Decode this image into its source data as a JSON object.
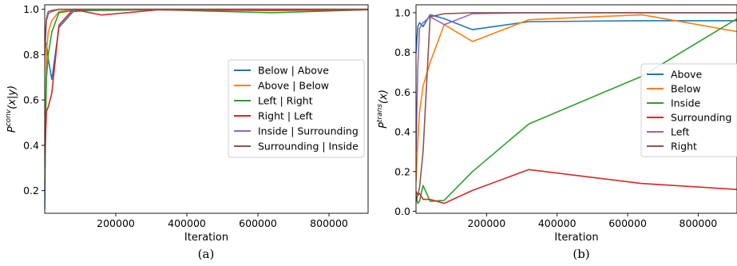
{
  "chart_data": [
    {
      "type": "line",
      "panel": "a",
      "caption": "(a)",
      "xlabel": "Iteration",
      "ylabel_base": "P",
      "ylabel_sup": "conv",
      "ylabel_arg": "(x|y)",
      "xlim": [
        0,
        910000
      ],
      "ylim": [
        0.1,
        1.02
      ],
      "xticks": [
        200000,
        400000,
        600000,
        800000
      ],
      "yticks": [
        0.2,
        0.4,
        0.6,
        0.8,
        1.0
      ],
      "ytick_labels": [
        "0.2",
        "0.4",
        "0.6",
        "0.8",
        "1.0"
      ],
      "grid": false,
      "legend_position": "center-right",
      "series": [
        {
          "name": "Below | Above",
          "color": "#1f77b4",
          "x": [
            0,
            5000,
            10000,
            20000,
            40000,
            80000,
            160000,
            320000,
            640000,
            910000
          ],
          "y": [
            0.12,
            0.85,
            0.78,
            0.69,
            0.92,
            0.99,
            0.999,
            1.0,
            1.0,
            1.0
          ]
        },
        {
          "name": "Above | Below",
          "color": "#ff7f0e",
          "x": [
            0,
            5000,
            10000,
            20000,
            40000,
            80000,
            160000,
            320000,
            640000,
            910000
          ],
          "y": [
            0.25,
            0.82,
            0.9,
            0.95,
            0.99,
            1.0,
            1.0,
            1.0,
            1.0,
            1.0
          ]
        },
        {
          "name": "Left | Right",
          "color": "#2ca02c",
          "x": [
            0,
            5000,
            10000,
            20000,
            40000,
            80000,
            160000,
            320000,
            640000,
            910000
          ],
          "y": [
            0.3,
            0.7,
            0.8,
            0.9,
            0.985,
            0.995,
            0.995,
            0.998,
            0.985,
            0.998
          ]
        },
        {
          "name": "Right | Left",
          "color": "#d62728",
          "x": [
            0,
            5000,
            10000,
            20000,
            40000,
            80000,
            160000,
            320000,
            640000,
            910000
          ],
          "y": [
            0.35,
            0.55,
            0.57,
            0.63,
            0.93,
            1.0,
            0.975,
            0.998,
            0.995,
            0.998
          ]
        },
        {
          "name": "Inside | Surrounding",
          "color": "#9467bd",
          "x": [
            0,
            5000,
            10000,
            20000,
            40000,
            80000,
            160000,
            320000,
            640000,
            910000
          ],
          "y": [
            0.8,
            0.95,
            0.98,
            0.99,
            1.0,
            1.0,
            1.0,
            1.0,
            1.0,
            1.0
          ]
        },
        {
          "name": "Surrounding | Inside",
          "color": "#8c564b",
          "x": [
            0,
            5000,
            10000,
            20000,
            40000,
            80000,
            160000,
            320000,
            640000,
            910000
          ],
          "y": [
            0.85,
            0.96,
            0.99,
            0.995,
            1.0,
            1.0,
            1.0,
            1.0,
            1.0,
            1.0
          ]
        }
      ]
    },
    {
      "type": "line",
      "panel": "b",
      "caption": "(b)",
      "xlabel": "Iteration",
      "ylabel_base": "P",
      "ylabel_sup": "trans",
      "ylabel_arg": "(x)",
      "xlim": [
        0,
        910000
      ],
      "ylim": [
        -0.01,
        1.04
      ],
      "xticks": [
        200000,
        400000,
        600000,
        800000
      ],
      "yticks": [
        0.0,
        0.2,
        0.4,
        0.6,
        0.8,
        1.0
      ],
      "ytick_labels": [
        "0.0",
        "0.2",
        "0.4",
        "0.6",
        "0.8",
        "1.0"
      ],
      "grid": false,
      "legend_position": "center-right",
      "series": [
        {
          "name": "Above",
          "color": "#1f77b4",
          "x": [
            0,
            5000,
            10000,
            20000,
            40000,
            80000,
            160000,
            320000,
            640000,
            910000
          ],
          "y": [
            0.8,
            0.93,
            0.95,
            0.93,
            0.99,
            0.97,
            0.915,
            0.955,
            0.96,
            0.96
          ]
        },
        {
          "name": "Below",
          "color": "#ff7f0e",
          "x": [
            0,
            5000,
            10000,
            20000,
            40000,
            80000,
            160000,
            320000,
            640000,
            910000
          ],
          "y": [
            0.15,
            0.35,
            0.5,
            0.63,
            0.75,
            0.94,
            0.855,
            0.965,
            0.99,
            0.905
          ]
        },
        {
          "name": "Inside",
          "color": "#2ca02c",
          "x": [
            0,
            5000,
            10000,
            20000,
            40000,
            80000,
            160000,
            320000,
            640000,
            910000
          ],
          "y": [
            0.08,
            0.04,
            0.05,
            0.13,
            0.05,
            0.055,
            0.2,
            0.44,
            0.68,
            0.97
          ]
        },
        {
          "name": "Surrounding",
          "color": "#d62728",
          "x": [
            0,
            5000,
            10000,
            20000,
            40000,
            80000,
            160000,
            320000,
            640000,
            910000
          ],
          "y": [
            0.1,
            0.08,
            0.09,
            0.06,
            0.06,
            0.04,
            0.105,
            0.21,
            0.14,
            0.11
          ]
        },
        {
          "name": "Left",
          "color": "#9467bd",
          "x": [
            0,
            5000,
            10000,
            20000,
            40000,
            80000,
            160000,
            320000,
            640000,
            910000
          ],
          "y": [
            0.3,
            0.72,
            0.92,
            0.95,
            0.98,
            0.94,
            0.995,
            1.0,
            1.0,
            1.0
          ]
        },
        {
          "name": "Right",
          "color": "#8c564b",
          "x": [
            0,
            5000,
            10000,
            20000,
            40000,
            80000,
            160000,
            320000,
            640000,
            910000
          ],
          "y": [
            0.05,
            0.08,
            0.12,
            0.3,
            0.98,
            0.995,
            1.0,
            1.0,
            1.0,
            1.0
          ]
        }
      ]
    }
  ]
}
